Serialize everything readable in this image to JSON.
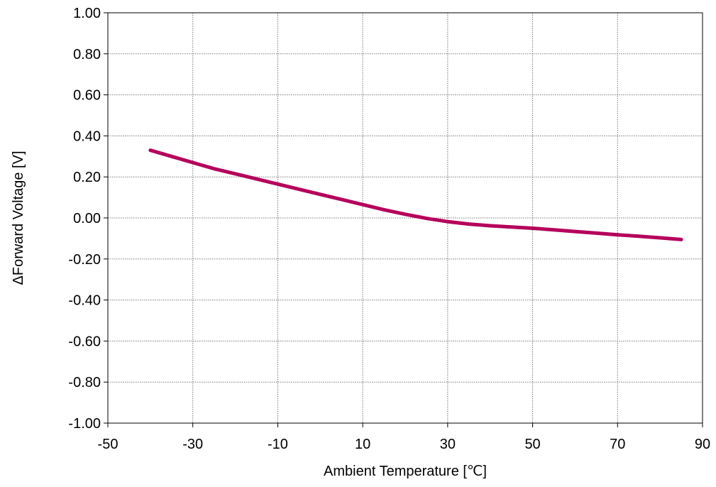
{
  "chart_data": {
    "type": "line",
    "title": "",
    "xlabel": "Ambient Temperature [℃]",
    "ylabel": "ΔForward Voltage [V]",
    "xlim": [
      -50,
      90
    ],
    "ylim": [
      -1.0,
      1.0
    ],
    "x_ticks": [
      -50,
      -30,
      -10,
      10,
      30,
      50,
      70,
      90
    ],
    "x_tick_labels": [
      "-50",
      "-30",
      "-10",
      "10",
      "30",
      "50",
      "70",
      "90"
    ],
    "y_ticks": [
      1.0,
      0.8,
      0.6,
      0.4,
      0.2,
      0.0,
      -0.2,
      -0.4,
      -0.6,
      -0.8,
      -1.0
    ],
    "y_tick_labels": [
      "1.00",
      "0.80",
      "0.60",
      "0.40",
      "0.20",
      "0.00",
      "-0.20",
      "-0.40",
      "-0.60",
      "-0.80",
      "-1.00"
    ],
    "grid": true,
    "grid_style": "dotted",
    "series": [
      {
        "color": "#b5005b",
        "x": [
          -40,
          -35,
          -30,
          -25,
          -20,
          -15,
          -10,
          -5,
          0,
          5,
          10,
          15,
          20,
          25,
          30,
          35,
          40,
          45,
          50,
          55,
          60,
          65,
          70,
          75,
          80,
          85
        ],
        "y": [
          0.33,
          0.3,
          0.27,
          0.24,
          0.215,
          0.19,
          0.165,
          0.14,
          0.115,
          0.09,
          0.065,
          0.04,
          0.018,
          -0.002,
          -0.018,
          -0.03,
          -0.038,
          -0.044,
          -0.05,
          -0.058,
          -0.066,
          -0.074,
          -0.082,
          -0.089,
          -0.097,
          -0.105
        ]
      }
    ]
  }
}
